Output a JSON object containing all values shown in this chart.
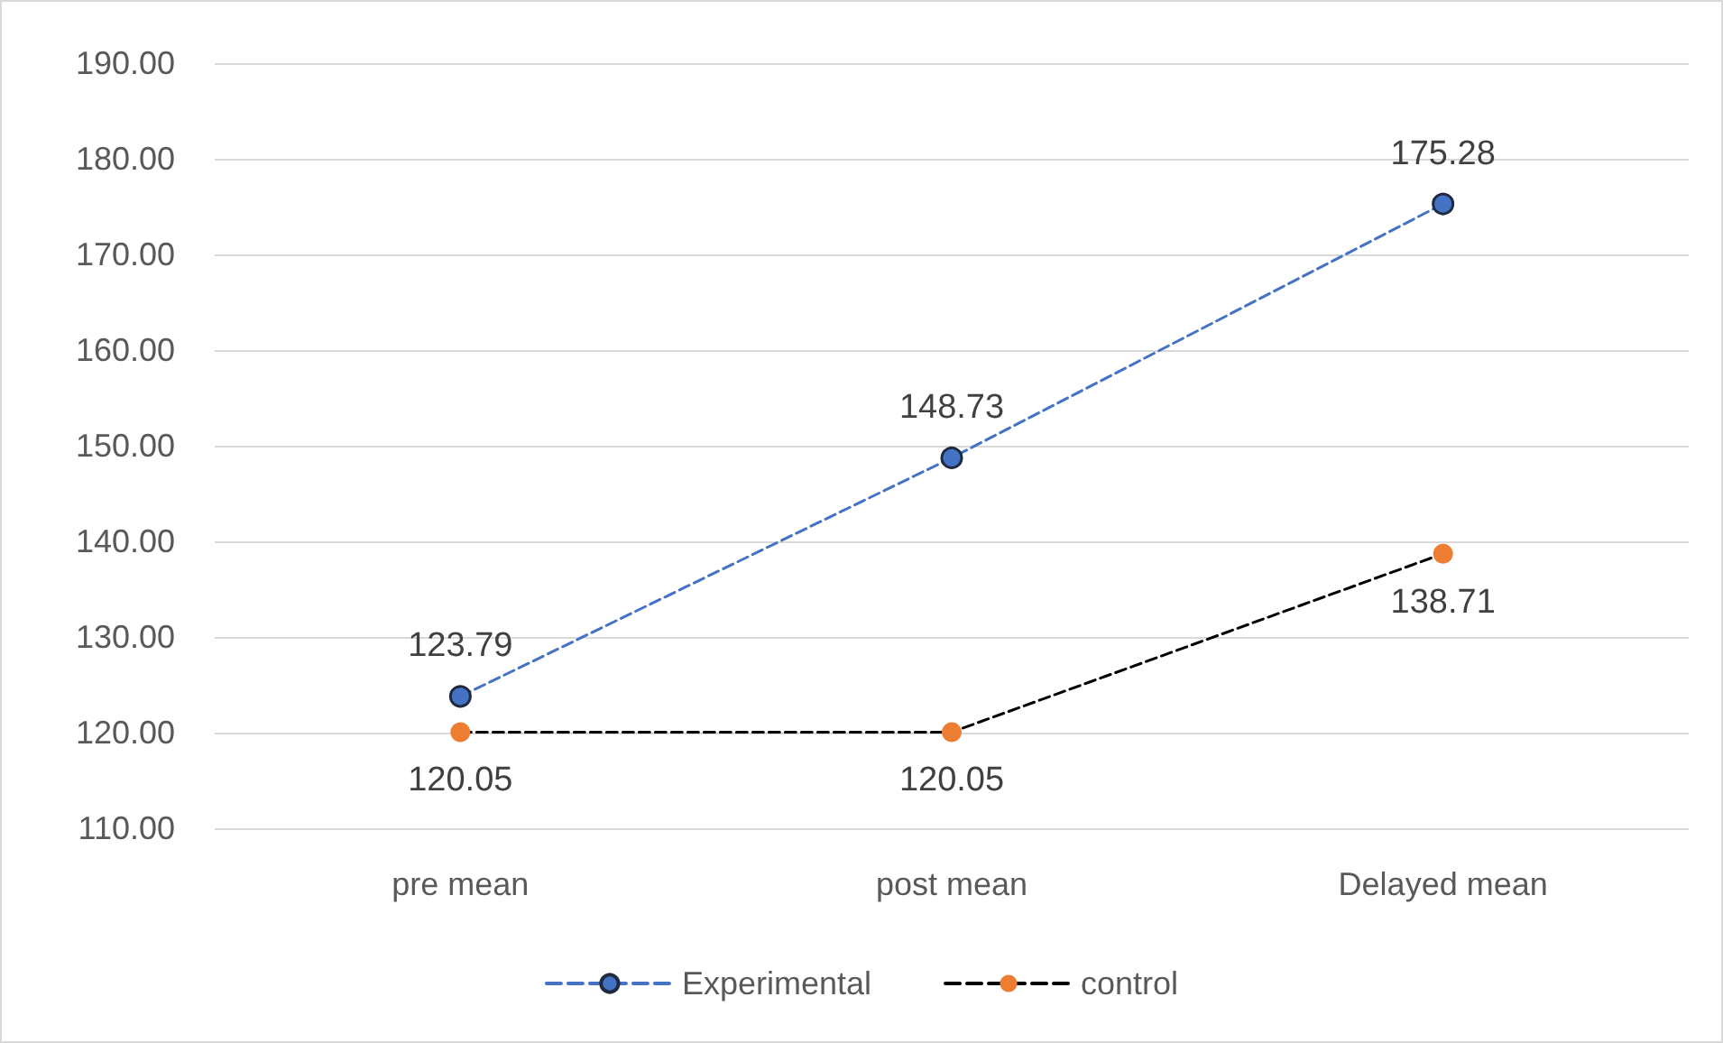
{
  "chart_data": {
    "type": "line",
    "categories": [
      "pre mean",
      "post mean",
      "Delayed mean"
    ],
    "series": [
      {
        "name": "Experimental",
        "color": "#4472c4",
        "values": [
          123.79,
          148.73,
          175.28
        ]
      },
      {
        "name": "control",
        "color": "#ed7d31",
        "values": [
          120.05,
          120.05,
          138.71
        ]
      }
    ],
    "ylim": [
      110,
      190
    ],
    "yticks": [
      {
        "value": 110,
        "label": "110.00"
      },
      {
        "value": 120,
        "label": "120.00"
      },
      {
        "value": 130,
        "label": "130.00"
      },
      {
        "value": 140,
        "label": "140.00"
      },
      {
        "value": 150,
        "label": "150.00"
      },
      {
        "value": 160,
        "label": "160.00"
      },
      {
        "value": 170,
        "label": "170.00"
      },
      {
        "value": 180,
        "label": "180.00"
      },
      {
        "value": 190,
        "label": "190.00"
      }
    ],
    "grid": "y",
    "legend": "bottom",
    "marker": "circle",
    "line_style": "dashed",
    "data_labels": true
  }
}
